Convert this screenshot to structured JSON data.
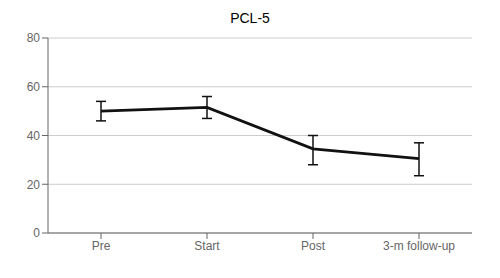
{
  "chart_data": {
    "type": "line",
    "title": "PCL-5",
    "categories": [
      "Pre",
      "Start",
      "Post",
      "3-m follow-up"
    ],
    "values": [
      50.0,
      51.5,
      34.5,
      30.5
    ],
    "ci_lower": [
      46.0,
      47.0,
      28.0,
      23.5
    ],
    "ci_upper": [
      54.0,
      56.0,
      40.0,
      37.0
    ],
    "color": "#111111",
    "ylim": [
      0,
      80
    ],
    "yticks": [
      0,
      20,
      40,
      60,
      80
    ],
    "grid": true
  }
}
